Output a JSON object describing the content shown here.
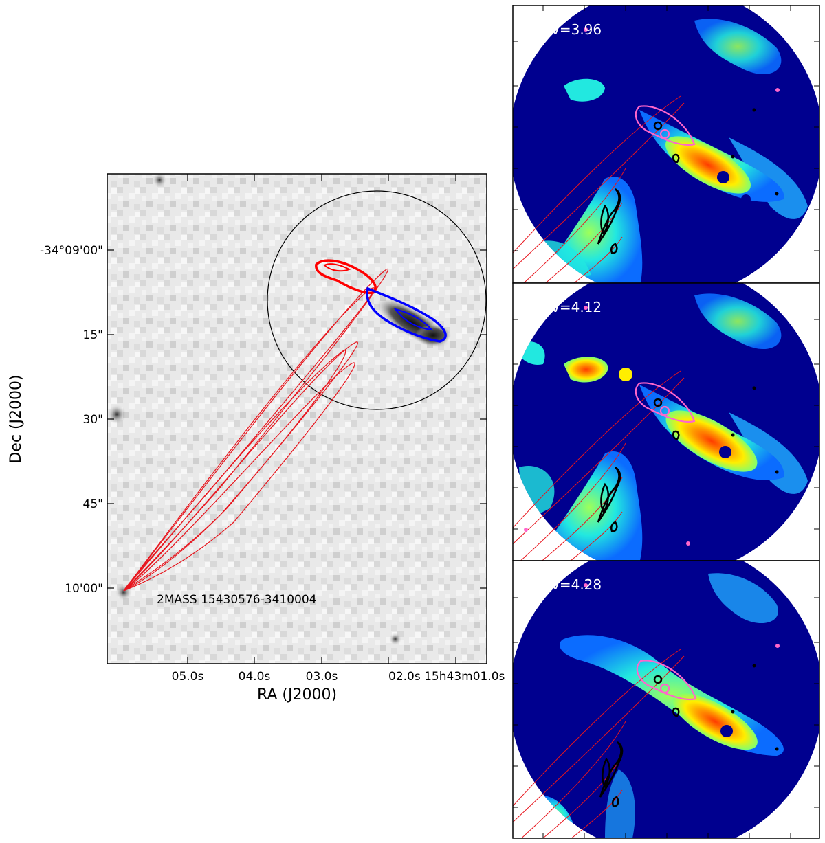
{
  "left_panel": {
    "x_axis_title": "RA (J2000)",
    "y_axis_title": "Dec (J2000)",
    "x_tick_labels": [
      "05.0s",
      "04.0s",
      "03.0s",
      "02.0s 15h43m01.0s"
    ],
    "y_tick_labels": [
      "-34°09'00\"",
      "15\"",
      "30\"",
      "45\"",
      "10'00\""
    ],
    "source_label": "2MASS 15430576-3410004"
  },
  "right_panels": [
    {
      "label": "v=3.96"
    },
    {
      "label": "v=4.12"
    },
    {
      "label": "v=4.28"
    }
  ],
  "colors": {
    "redshifted": "#ff0000",
    "blueshifted": "#0000ff",
    "ellipses": "#e8141c",
    "pink_contours": "#ff66cc",
    "black_contours": "#000000",
    "map_background": "#00008f"
  }
}
